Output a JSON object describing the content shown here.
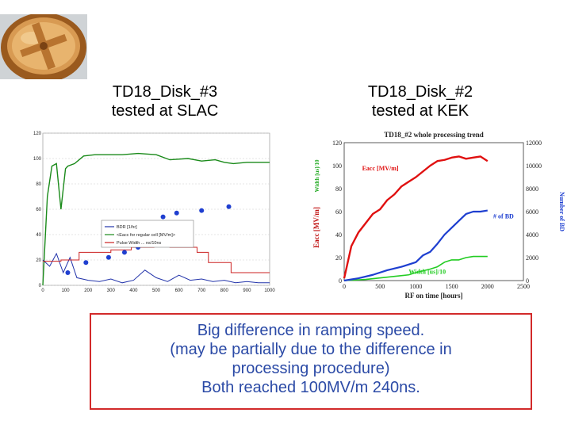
{
  "slide": {
    "left_title": [
      "TD18_Disk_#3",
      "tested at SLAC"
    ],
    "right_title": [
      "TD18_Disk_#2",
      "tested at KEK"
    ],
    "note_lines": [
      "Big difference in ramping speed.",
      "(may be partially due to the difference in",
      "processing procedure)",
      "Both reached 100MV/m 240ns."
    ]
  },
  "chart_data": [
    {
      "type": "line",
      "xlim": [
        0,
        1000
      ],
      "ylim": [
        0,
        120
      ],
      "x_ticks": [
        "0",
        "100",
        "200",
        "300",
        "400",
        "500",
        "600",
        "700",
        "800",
        "900",
        "1000"
      ],
      "y_ticks": [
        "0",
        "20",
        "40",
        "60",
        "80",
        "100",
        "120"
      ],
      "legend": [
        "BDR [1/hr]",
        "<Eacc for regular cell [MV/m]>",
        "Pulse Width ... ns/10ns"
      ],
      "legend_position": "center",
      "series": [
        {
          "name": "Eacc",
          "color": "#1a8a1a",
          "x": [
            0,
            20,
            40,
            60,
            80,
            100,
            110,
            140,
            180,
            230,
            290,
            350,
            420,
            500,
            560,
            640,
            700,
            760,
            800,
            840,
            900,
            960,
            1000
          ],
          "y": [
            0,
            70,
            94,
            96,
            60,
            92,
            94,
            96,
            102,
            103,
            103,
            103,
            104,
            103,
            99,
            100,
            98,
            99,
            97,
            96,
            97,
            97,
            97
          ]
        },
        {
          "name": "BDR",
          "color": "#2233aa",
          "x": [
            0,
            30,
            60,
            90,
            120,
            150,
            200,
            250,
            300,
            350,
            400,
            450,
            500,
            550,
            600,
            650,
            700,
            750,
            800,
            850,
            900,
            950,
            1000
          ],
          "y": [
            20,
            15,
            25,
            10,
            22,
            6,
            4,
            3,
            5,
            2,
            4,
            12,
            6,
            3,
            8,
            4,
            5,
            3,
            4,
            2,
            3,
            2,
            2
          ]
        },
        {
          "name": "Pulse Width",
          "color": "#cc2222",
          "x": [
            0,
            80,
            80,
            160,
            160,
            300,
            300,
            390,
            390,
            490,
            490,
            560,
            560,
            680,
            680,
            730,
            730,
            830,
            830,
            1000
          ],
          "y": [
            19,
            19,
            20,
            20,
            26,
            26,
            28,
            28,
            30,
            30,
            32,
            32,
            30,
            30,
            26,
            26,
            18,
            18,
            10,
            10
          ]
        }
      ],
      "markers": {
        "name": "dots",
        "color": "#1f3fd0",
        "x": [
          110,
          190,
          290,
          360,
          420,
          440,
          470,
          530,
          590,
          700,
          820
        ],
        "y": [
          10,
          18,
          22,
          26,
          30,
          36,
          45,
          54,
          57,
          59,
          62
        ]
      }
    },
    {
      "type": "line",
      "title": "TD18_#2 whole processing trend",
      "xlabel": "RF on time [hours]",
      "ylabel": "Eacc [MV/m]",
      "ylabel_right": "Number of BD",
      "xlim": [
        0,
        2500
      ],
      "ylim": [
        0,
        120
      ],
      "ylim_right": [
        0,
        12000
      ],
      "x_ticks": [
        "0",
        "500",
        "1000",
        "1500",
        "2000",
        "2500"
      ],
      "y_ticks": [
        "0",
        "20",
        "40",
        "60",
        "80",
        "100",
        "120"
      ],
      "y_ticks_right": [
        "0",
        "2000",
        "4000",
        "6000",
        "8000",
        "10000",
        "12000"
      ],
      "labels": [
        "Eacc [MV/m]",
        "Width [us]/10",
        "# of BD"
      ],
      "series": [
        {
          "name": "Eacc",
          "color": "#e01010",
          "x": [
            0,
            100,
            200,
            300,
            400,
            500,
            600,
            700,
            800,
            900,
            1000,
            1100,
            1200,
            1300,
            1400,
            1500,
            1600,
            1700,
            1800,
            1900,
            2000
          ],
          "y": [
            2,
            30,
            42,
            50,
            58,
            62,
            70,
            75,
            82,
            86,
            90,
            95,
            100,
            104,
            105,
            107,
            108,
            106,
            107,
            108,
            104
          ]
        },
        {
          "name": "Width",
          "color": "#22cc22",
          "x": [
            0,
            300,
            600,
            900,
            1000,
            1200,
            1300,
            1400,
            1500,
            1600,
            1700,
            1800,
            1900,
            2000
          ],
          "y": [
            0,
            1,
            3,
            5,
            7,
            10,
            12,
            16,
            18,
            18,
            20,
            21,
            21,
            21
          ]
        },
        {
          "name": "# of BD",
          "color": "#1e3fd0",
          "axis": "right",
          "x": [
            0,
            200,
            400,
            600,
            800,
            1000,
            1100,
            1200,
            1300,
            1400,
            1500,
            1600,
            1700,
            1800,
            1900,
            2000
          ],
          "y": [
            0,
            200,
            500,
            900,
            1200,
            1600,
            2200,
            2500,
            3200,
            4000,
            4600,
            5200,
            5800,
            6000,
            6000,
            6100
          ]
        }
      ]
    }
  ]
}
